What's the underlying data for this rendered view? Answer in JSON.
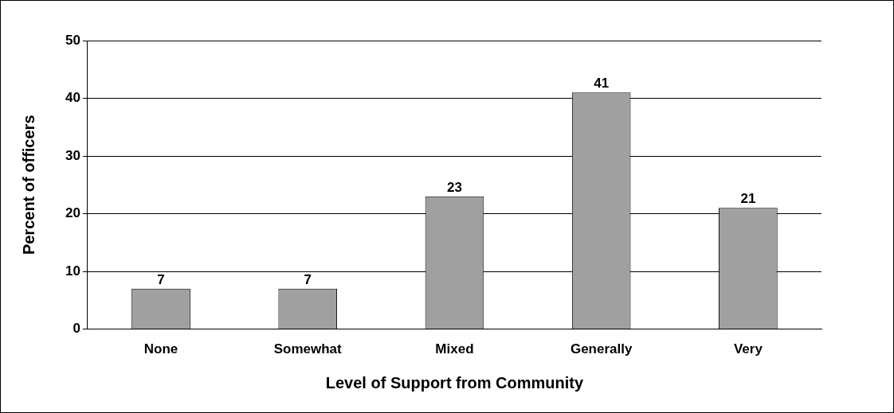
{
  "chart_data": {
    "type": "bar",
    "xlabel": "Level of Support from Community",
    "ylabel": "Percent of officers",
    "categories": [
      "None",
      "Somewhat",
      "Mixed",
      "Generally",
      "Very"
    ],
    "values": [
      7,
      7,
      23,
      41,
      21
    ],
    "color": "#a0a0a0",
    "ylim": [
      0,
      50
    ],
    "yticks": [
      0,
      10,
      20,
      30,
      40,
      50
    ],
    "grid": "y",
    "data_labels": true
  }
}
